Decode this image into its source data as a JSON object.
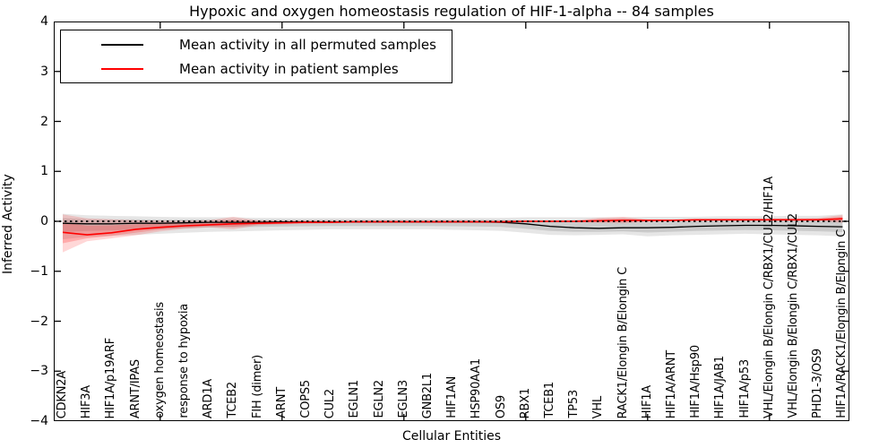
{
  "chart_data": {
    "type": "line",
    "title": "Hypoxic and oxygen homeostasis regulation of HIF-1-alpha -- 84 samples",
    "xlabel": "Cellular Entities",
    "ylabel": "Inferred Activity",
    "ylim": [
      -4,
      4
    ],
    "ytick_labels": [
      "4",
      "3",
      "2",
      "1",
      "0",
      "−1",
      "−2",
      "−3",
      "−4"
    ],
    "ytick_values": [
      4,
      3,
      2,
      1,
      0,
      -1,
      -2,
      -3,
      -4
    ],
    "top_tick_indices": [
      4,
      9,
      14,
      19,
      24,
      29
    ],
    "grid": false,
    "legend_position": "upper left",
    "categories": [
      "CDKN2A",
      "HIF3A",
      "HIF1A/p19ARF",
      "ARNT/IPAS",
      "oxygen homeostasis",
      "response to hypoxia",
      "ARD1A",
      "TCEB2",
      "FIH (dimer)",
      "ARNT",
      "COPS5",
      "CUL2",
      "EGLN1",
      "EGLN2",
      "EGLN3",
      "GNB2L1",
      "HIF1AN",
      "HSP90AA1",
      "OS9",
      "RBX1",
      "TCEB1",
      "TP53",
      "VHL",
      "RACK1/Elongin B/Elongin C",
      "HIF1A",
      "HIF1A/ARNT",
      "HIF1A/Hsp90",
      "HIF1A/JAB1",
      "HIF1A/p53",
      "VHL/Elongin B/Elongin C/RBX1/CUL2/HIF1A",
      "VHL/Elongin B/Elongin C/RBX1/CUL2",
      "PHD1-3/OS9",
      "HIF1A/RACK1/Elongin B/Elongin C"
    ],
    "series": [
      {
        "name": "Mean activity in all permuted samples",
        "color": "#000000",
        "style": "solid",
        "values": [
          -0.04,
          -0.05,
          -0.05,
          -0.04,
          -0.04,
          -0.03,
          -0.02,
          -0.02,
          -0.02,
          -0.01,
          -0.01,
          -0.01,
          -0.01,
          -0.01,
          -0.01,
          -0.01,
          -0.01,
          -0.01,
          -0.02,
          -0.05,
          -0.1,
          -0.13,
          -0.14,
          -0.13,
          -0.13,
          -0.12,
          -0.1,
          -0.09,
          -0.08,
          -0.08,
          -0.09,
          -0.1,
          -0.11
        ]
      },
      {
        "name": "Mean activity in patient samples",
        "color": "#ff0000",
        "style": "solid",
        "values": [
          -0.22,
          -0.27,
          -0.23,
          -0.16,
          -0.12,
          -0.09,
          -0.07,
          -0.05,
          -0.04,
          -0.03,
          -0.02,
          -0.02,
          -0.01,
          -0.01,
          -0.01,
          -0.01,
          -0.01,
          -0.01,
          -0.01,
          0.0,
          0.0,
          0.0,
          0.01,
          0.02,
          0.02,
          0.02,
          0.03,
          0.03,
          0.03,
          0.03,
          0.03,
          0.03,
          0.05
        ]
      }
    ],
    "bands": [
      {
        "name": "permuted samples range",
        "color": "#808080",
        "opacity": 0.2,
        "top": [
          0.15,
          0.12,
          0.11,
          0.1,
          0.09,
          0.08,
          0.08,
          0.08,
          0.07,
          0.07,
          0.07,
          0.07,
          0.07,
          0.07,
          0.07,
          0.07,
          0.07,
          0.07,
          0.07,
          0.08,
          0.08,
          0.08,
          0.08,
          0.08,
          0.09,
          0.09,
          0.09,
          0.1,
          0.1,
          0.1,
          0.11,
          0.11,
          0.14
        ],
        "bottom": [
          -0.36,
          -0.31,
          -0.29,
          -0.27,
          -0.25,
          -0.23,
          -0.21,
          -0.2,
          -0.19,
          -0.18,
          -0.17,
          -0.16,
          -0.16,
          -0.16,
          -0.16,
          -0.16,
          -0.17,
          -0.18,
          -0.19,
          -0.23,
          -0.27,
          -0.28,
          -0.27,
          -0.26,
          -0.3,
          -0.28,
          -0.27,
          -0.26,
          -0.25,
          -0.26,
          -0.27,
          -0.28,
          -0.3
        ]
      },
      {
        "name": "patient samples range",
        "color": "#ff2222",
        "opacity": 0.18,
        "top": [
          0.14,
          0.06,
          0.04,
          0.02,
          0.01,
          0.01,
          0.02,
          0.09,
          0.02,
          0.01,
          0.01,
          0.01,
          0.01,
          0.01,
          0.01,
          0.01,
          0.01,
          0.01,
          0.01,
          0.02,
          0.02,
          0.02,
          0.07,
          0.09,
          0.04,
          0.04,
          0.05,
          0.05,
          0.05,
          0.06,
          0.06,
          0.07,
          0.13
        ],
        "bottom": [
          -0.62,
          -0.4,
          -0.34,
          -0.28,
          -0.2,
          -0.15,
          -0.12,
          -0.16,
          -0.08,
          -0.06,
          -0.05,
          -0.04,
          -0.03,
          -0.03,
          -0.03,
          -0.03,
          -0.03,
          -0.03,
          -0.03,
          -0.02,
          -0.02,
          -0.02,
          -0.03,
          -0.04,
          -0.01,
          0.0,
          0.0,
          0.01,
          0.01,
          0.01,
          0.01,
          0.01,
          -0.03
        ]
      }
    ],
    "reference_line": {
      "y": 0,
      "style": "dotted",
      "color": "#000000"
    }
  },
  "legend": {
    "entries": [
      {
        "label": "Mean activity in all permuted samples",
        "color": "#000000"
      },
      {
        "label": "Mean activity in patient samples",
        "color": "#ff0000"
      }
    ]
  }
}
